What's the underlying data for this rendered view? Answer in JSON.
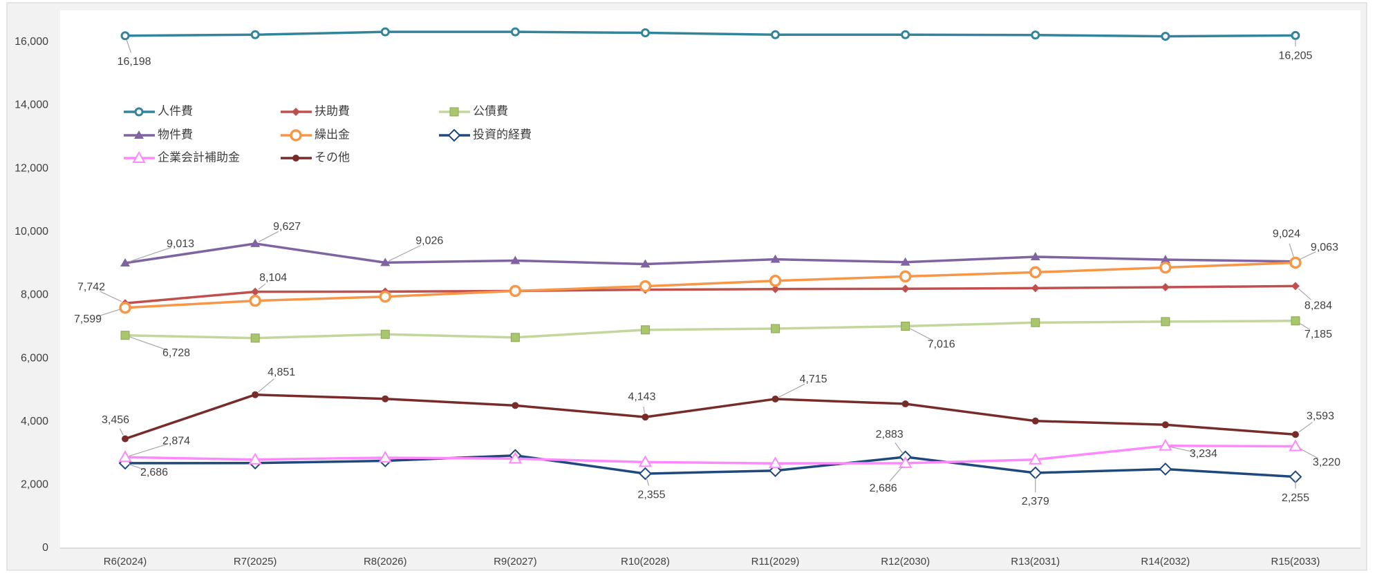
{
  "chart_data": {
    "type": "line",
    "categories": [
      "R6(2024)",
      "R7(2025)",
      "R8(2026)",
      "R9(2027)",
      "R10(2028)",
      "R11(2029)",
      "R12(2030)",
      "R13(2031)",
      "R14(2032)",
      "R15(2033)"
    ],
    "ylim": [
      0,
      17000
    ],
    "yticks": [
      0,
      {
        "value": 2000,
        "label": "2,000"
      },
      {
        "value": 4000,
        "label": "4,000"
      },
      {
        "value": 6000,
        "label": "6,000"
      },
      {
        "value": 8000,
        "label": "8,000"
      },
      {
        "value": 10000,
        "label": "10,000"
      },
      {
        "value": 12000,
        "label": "12,000"
      },
      {
        "value": 14000,
        "label": "14,000"
      },
      {
        "value": 16000,
        "label": "16,000"
      }
    ],
    "grid": false,
    "series": [
      {
        "name": "人件費",
        "color": "#31849b",
        "marker": "open-circle",
        "values": [
          16198,
          16230,
          16320,
          16320,
          16290,
          16230,
          16230,
          16220,
          16180,
          16205
        ],
        "value_labels": [
          "16,198",
          null,
          null,
          null,
          null,
          null,
          null,
          null,
          null,
          "16,205"
        ]
      },
      {
        "name": "扶助費",
        "color": "#c0504d",
        "marker": "diamond",
        "values": [
          7742,
          8104,
          8110,
          8130,
          8170,
          8190,
          8200,
          8220,
          8250,
          8284
        ],
        "value_labels": [
          "7,742",
          "8,104",
          null,
          null,
          null,
          null,
          null,
          null,
          null,
          "8,284"
        ]
      },
      {
        "name": "公債費",
        "color": "#c3d69b",
        "marker": "square",
        "values": [
          6728,
          6640,
          6760,
          6660,
          6900,
          6940,
          7016,
          7130,
          7160,
          7185
        ],
        "value_labels": [
          "6,728",
          null,
          null,
          null,
          null,
          null,
          "7,016",
          null,
          null,
          "7,185"
        ]
      },
      {
        "name": "物件費",
        "color": "#8064a2",
        "marker": "triangle",
        "values": [
          9013,
          9627,
          9026,
          9090,
          8980,
          9130,
          9040,
          9210,
          9120,
          9063
        ],
        "value_labels": [
          "9,013",
          "9,627",
          "9,026",
          null,
          null,
          null,
          null,
          null,
          null,
          "9,063"
        ]
      },
      {
        "name": "繰出金",
        "color": "#f79646",
        "marker": "open-circle-big",
        "values": [
          7599,
          7820,
          7950,
          8130,
          8280,
          8450,
          8590,
          8720,
          8870,
          9024
        ],
        "value_labels": [
          "7,599",
          null,
          null,
          null,
          null,
          null,
          null,
          null,
          null,
          "9,024"
        ]
      },
      {
        "name": "投資的経費",
        "color": "#1f497d",
        "marker": "open-diamond",
        "values": [
          2686,
          2690,
          2760,
          2930,
          2355,
          2450,
          2883,
          2379,
          2500,
          2255
        ],
        "value_labels": [
          "2,686",
          null,
          null,
          null,
          "2,355",
          null,
          "2,883",
          "2,379",
          null,
          "2,255"
        ]
      },
      {
        "name": "企業会計補助金",
        "color": "#ff88ff",
        "marker": "open-triangle",
        "values": [
          2874,
          2800,
          2860,
          2830,
          2720,
          2680,
          2686,
          2800,
          3234,
          3220
        ],
        "value_labels": [
          "2,874",
          null,
          null,
          null,
          null,
          null,
          "2,686",
          null,
          "3,234",
          "3,220"
        ]
      },
      {
        "name": "その他",
        "color": "#772c2a",
        "marker": "circle",
        "values": [
          3456,
          4851,
          4720,
          4510,
          4143,
          4715,
          4560,
          4020,
          3900,
          3593
        ],
        "value_labels": [
          "3,456",
          "4,851",
          null,
          null,
          "4,143",
          "4,715",
          null,
          null,
          null,
          "3,593"
        ]
      }
    ]
  }
}
